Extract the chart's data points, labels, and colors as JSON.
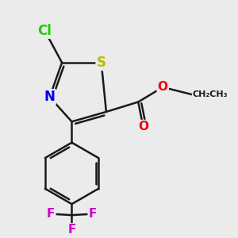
{
  "background_color": "#ebebeb",
  "bond_color": "#1a1a1a",
  "bond_width": 1.8,
  "atom_colors": {
    "Cl": "#22cc00",
    "S": "#bbbb00",
    "N": "#0000ee",
    "O": "#ee0000",
    "F": "#cc00cc",
    "C": "#1a1a1a"
  },
  "atom_fontsizes": {
    "Cl": 12,
    "S": 12,
    "N": 12,
    "O": 11,
    "F": 11,
    "Et": 9
  }
}
